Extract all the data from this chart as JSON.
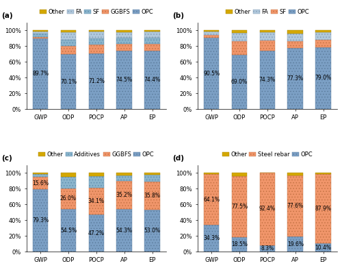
{
  "categories": [
    "GWP",
    "ODP",
    "POCP",
    "AP",
    "EP"
  ],
  "subplot_a": {
    "title": "(a)",
    "legend_labels": [
      "Other",
      "FA",
      "SF",
      "GGBFS",
      "OPC"
    ],
    "opc_values": [
      89.7,
      70.1,
      71.2,
      74.5,
      74.4
    ],
    "ggbfs_values": [
      2.0,
      10.0,
      10.5,
      8.5,
      8.5
    ],
    "sf_values": [
      4.0,
      8.0,
      8.5,
      8.0,
      8.0
    ],
    "fa_values": [
      3.0,
      9.5,
      8.0,
      6.5,
      7.5
    ],
    "other_values": [
      1.3,
      2.4,
      1.8,
      2.5,
      1.6
    ],
    "opc_labels": [
      "89.7%",
      "70.1%",
      "71.2%",
      "74.5%",
      "74.4%"
    ]
  },
  "subplot_b": {
    "title": "(b)",
    "legend_labels": [
      "Other",
      "FA",
      "SF",
      "OPC"
    ],
    "opc_values": [
      90.5,
      69.0,
      74.3,
      77.3,
      79.0
    ],
    "sf_values": [
      4.0,
      17.0,
      13.0,
      9.5,
      9.0
    ],
    "fa_values": [
      4.5,
      11.0,
      10.5,
      9.5,
      9.5
    ],
    "other_values": [
      1.0,
      3.0,
      2.2,
      3.7,
      2.5
    ],
    "opc_labels": [
      "90.5%",
      "69.0%",
      "74.3%",
      "77.3%",
      "79.0%"
    ]
  },
  "subplot_c": {
    "title": "(c)",
    "legend_labels": [
      "Other",
      "Additives",
      "GGBFS",
      "OPC"
    ],
    "opc_values": [
      79.3,
      54.5,
      47.2,
      54.3,
      53.0
    ],
    "ggbfs_values": [
      15.6,
      26.0,
      34.1,
      35.2,
      35.8
    ],
    "additives_values": [
      3.5,
      14.5,
      15.0,
      7.5,
      9.0
    ],
    "other_values": [
      1.6,
      5.0,
      3.7,
      3.0,
      2.2
    ],
    "opc_labels": [
      "79.3%",
      "54.5%",
      "47.2%",
      "54.3%",
      "53.0%"
    ],
    "ggbfs_labels": [
      "15.6%",
      "26.0%",
      "34.1%",
      "35.2%",
      "35.8%"
    ]
  },
  "subplot_d": {
    "title": "(d)",
    "legend_labels": [
      "Other",
      "Steel rebar",
      "OPC"
    ],
    "opc_values": [
      34.3,
      18.5,
      8.3,
      19.6,
      10.4
    ],
    "steel_values": [
      64.1,
      77.5,
      92.4,
      77.6,
      87.9
    ],
    "other_values": [
      1.6,
      4.0,
      -0.7,
      2.8,
      1.7
    ],
    "opc_labels": [
      "34.3%",
      "18.5%",
      "8.3%",
      "19.6%",
      "10.4%"
    ],
    "steel_labels": [
      "64.1%",
      "77.5%",
      "92.4%",
      "77.6%",
      "87.9%"
    ]
  },
  "color_opc": "#7b9fc4",
  "color_ggbfs": "#f0956a",
  "color_sf": "#f0956a",
  "color_fa": "#7b9fc4",
  "color_additives": "#7b9fc4",
  "color_steel": "#f0956a",
  "color_other": "#d4a800",
  "hatch_opc": "....",
  "hatch_ggbfs": "....",
  "hatch_sf": "....",
  "hatch_fa": "....",
  "hatch_additives": "....",
  "hatch_steel": "....",
  "hatch_other": "",
  "background_color": "#ffffff",
  "bar_width": 0.55,
  "label_fontsize": 5.5,
  "tick_fontsize": 6.0,
  "legend_fontsize": 6.0,
  "title_fontsize": 7.5
}
